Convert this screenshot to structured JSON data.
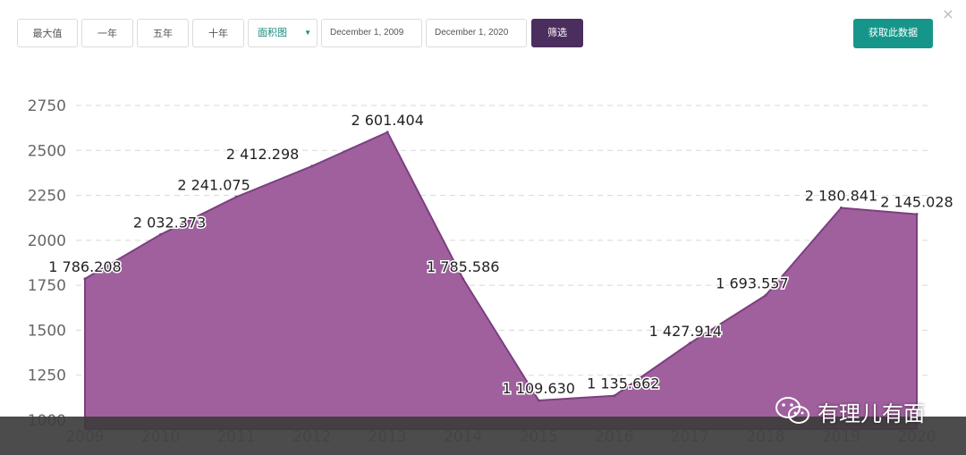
{
  "toolbar": {
    "range_buttons": [
      "最大值",
      "一年",
      "五年",
      "十年"
    ],
    "chart_type_select": "面积图",
    "start_date": "December 1, 2009",
    "end_date": "December 1, 2020",
    "filter_label": "筛选",
    "fetch_label": "获取此数据",
    "close_symbol": "×"
  },
  "watermark": {
    "text": "有理儿有面",
    "icon": "wechat-icon"
  },
  "colors": {
    "area": "#a0609e",
    "area_line": "#7c3f80",
    "grid": "#d8d8d8",
    "filter_button": "#4b2d5e",
    "fetch_button": "#16968a"
  },
  "chart_data": {
    "type": "area",
    "x": [
      "2009",
      "2010",
      "2011",
      "2012",
      "2013",
      "2014",
      "2015",
      "2016",
      "2017",
      "2018",
      "2019",
      "2020"
    ],
    "values": [
      1786.208,
      2032.373,
      2241.075,
      2412.298,
      2601.404,
      1785.586,
      1109.63,
      1135.662,
      1427.914,
      1693.557,
      2180.841,
      2145.028
    ],
    "data_labels": [
      "1 786.208",
      "2 032.373",
      "2 241.075",
      "2 412.298",
      "2 601.404",
      "1 785.586",
      "1 109.630",
      "1 135.662",
      "1 427.914",
      "1 693.557",
      "2 180.841",
      "2 145.028"
    ],
    "y_ticks": [
      1000,
      1250,
      1500,
      1750,
      2000,
      2250,
      2500,
      2750
    ],
    "ylim": [
      1000,
      2750
    ],
    "grid": true
  }
}
